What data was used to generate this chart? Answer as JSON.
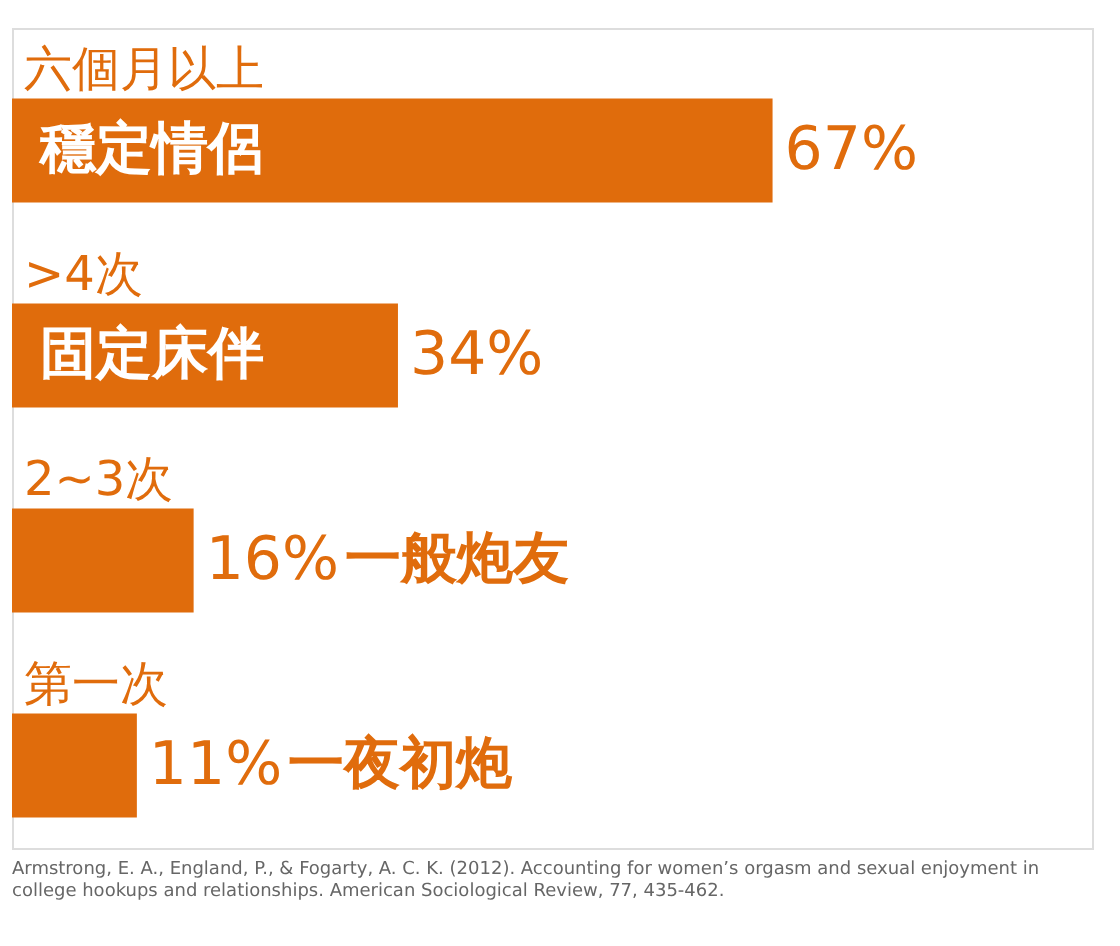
{
  "chart_data": {
    "type": "bar",
    "orientation": "horizontal",
    "categories": [
      "穩定情侶",
      "固定床伴",
      "一般炮友",
      "一夜初炮"
    ],
    "values": [
      67,
      34,
      16,
      11
    ],
    "value_labels": [
      "67%",
      "34%",
      "16%",
      "11%"
    ],
    "color": "#e06c0c",
    "tick_labels": false,
    "annotations": [
      "六個月以上",
      ">4次",
      "2~3次",
      "第一次",
      "Armstrong, E. A., England, P., & Fogarty, A. C. K. (2012). Accounting for women’s orgasm and sexual enjoyment in college hookups and relationships. American Sociological Review, 77, 435-462."
    ]
  }
}
